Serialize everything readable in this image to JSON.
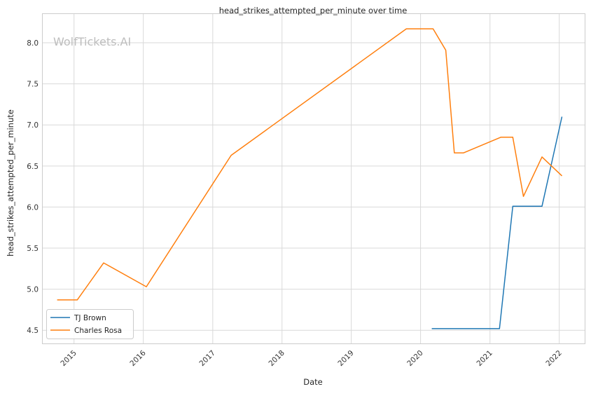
{
  "chart_data": {
    "type": "line",
    "title": "head_strikes_attempted_per_minute over time",
    "xlabel": "Date",
    "ylabel": "head_strikes_attempted_per_minute",
    "watermark": "WolfTickets.AI",
    "x_ticks": [
      "2015",
      "2016",
      "2017",
      "2018",
      "2019",
      "2020",
      "2021",
      "2022"
    ],
    "y_ticks": [
      "4.5",
      "5.0",
      "5.5",
      "6.0",
      "6.5",
      "7.0",
      "7.5",
      "8.0"
    ],
    "xlim": [
      "2014-07-20",
      "2022-05-15"
    ],
    "ylim": [
      4.34,
      8.35
    ],
    "grid": true,
    "legend_position": "lower-left",
    "series": [
      {
        "name": "TJ Brown",
        "color": "#1f77b4",
        "points": [
          {
            "x": "2020-02-29",
            "y": 4.52
          },
          {
            "x": "2021-02-20",
            "y": 4.52
          },
          {
            "x": "2021-05-01",
            "y": 6.01
          },
          {
            "x": "2021-10-02",
            "y": 6.01
          },
          {
            "x": "2022-01-15",
            "y": 7.1
          }
        ]
      },
      {
        "name": "Charles Rosa",
        "color": "#ff7f0e",
        "points": [
          {
            "x": "2014-10-04",
            "y": 4.87
          },
          {
            "x": "2015-01-18",
            "y": 4.87
          },
          {
            "x": "2015-06-06",
            "y": 5.32
          },
          {
            "x": "2016-01-17",
            "y": 5.03
          },
          {
            "x": "2017-04-08",
            "y": 6.63
          },
          {
            "x": "2019-10-18",
            "y": 8.17
          },
          {
            "x": "2020-03-07",
            "y": 8.17
          },
          {
            "x": "2020-05-13",
            "y": 7.91
          },
          {
            "x": "2020-06-27",
            "y": 6.66
          },
          {
            "x": "2020-08-15",
            "y": 6.66
          },
          {
            "x": "2021-02-27",
            "y": 6.85
          },
          {
            "x": "2021-05-01",
            "y": 6.85
          },
          {
            "x": "2021-06-26",
            "y": 6.13
          },
          {
            "x": "2021-10-02",
            "y": 6.61
          },
          {
            "x": "2022-01-15",
            "y": 6.38
          }
        ]
      }
    ]
  }
}
